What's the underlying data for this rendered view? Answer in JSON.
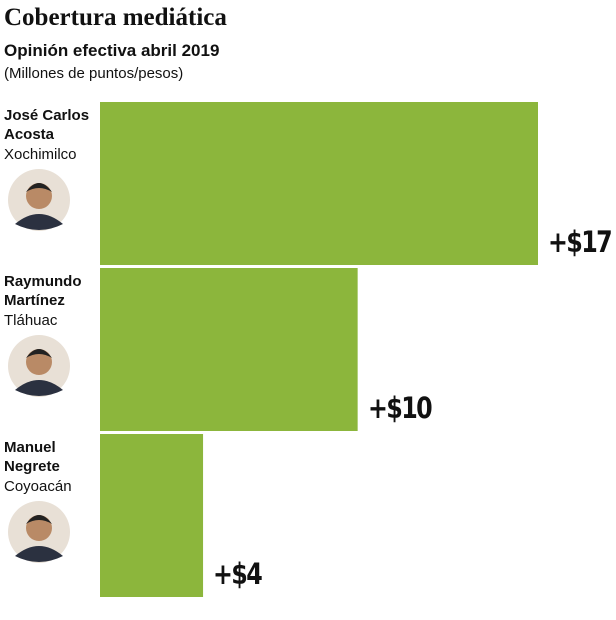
{
  "chart_data": {
    "type": "bar",
    "orientation": "horizontal",
    "title": "Cobertura mediática",
    "subtitle": "Opinión efectiva abril 2019",
    "unit": "(Millones de puntos/pesos)",
    "categories": [
      "José Carlos Acosta",
      "Raymundo Martínez",
      "Manuel Negrete"
    ],
    "locations": [
      "Xochimilco",
      "Tláhuac",
      "Coyoacán"
    ],
    "values": [
      17,
      10,
      4
    ],
    "value_labels": [
      "+$17",
      "+$10",
      "+$4"
    ],
    "color": "#8cb63c",
    "xlim": [
      0,
      17
    ]
  }
}
